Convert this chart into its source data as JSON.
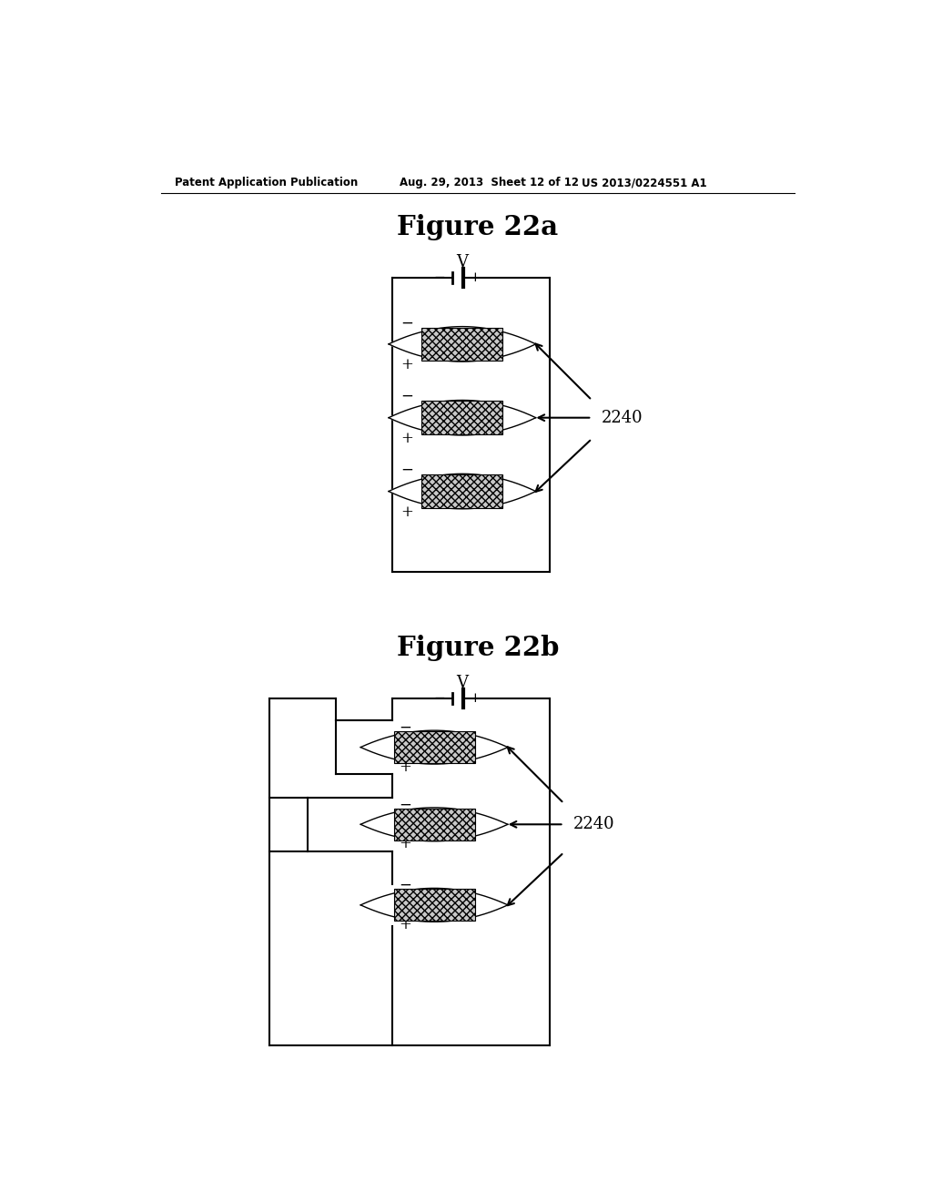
{
  "bg_color": "#ffffff",
  "header_left": "Patent Application Publication",
  "header_mid": "Aug. 29, 2013  Sheet 12 of 12",
  "header_right": "US 2013/0224551 A1",
  "fig22a_title": "Figure 22a",
  "fig22b_title": "Figure 22b",
  "label_2240": "2240",
  "label_V": "V",
  "label_minus": "−",
  "label_plus": "+"
}
